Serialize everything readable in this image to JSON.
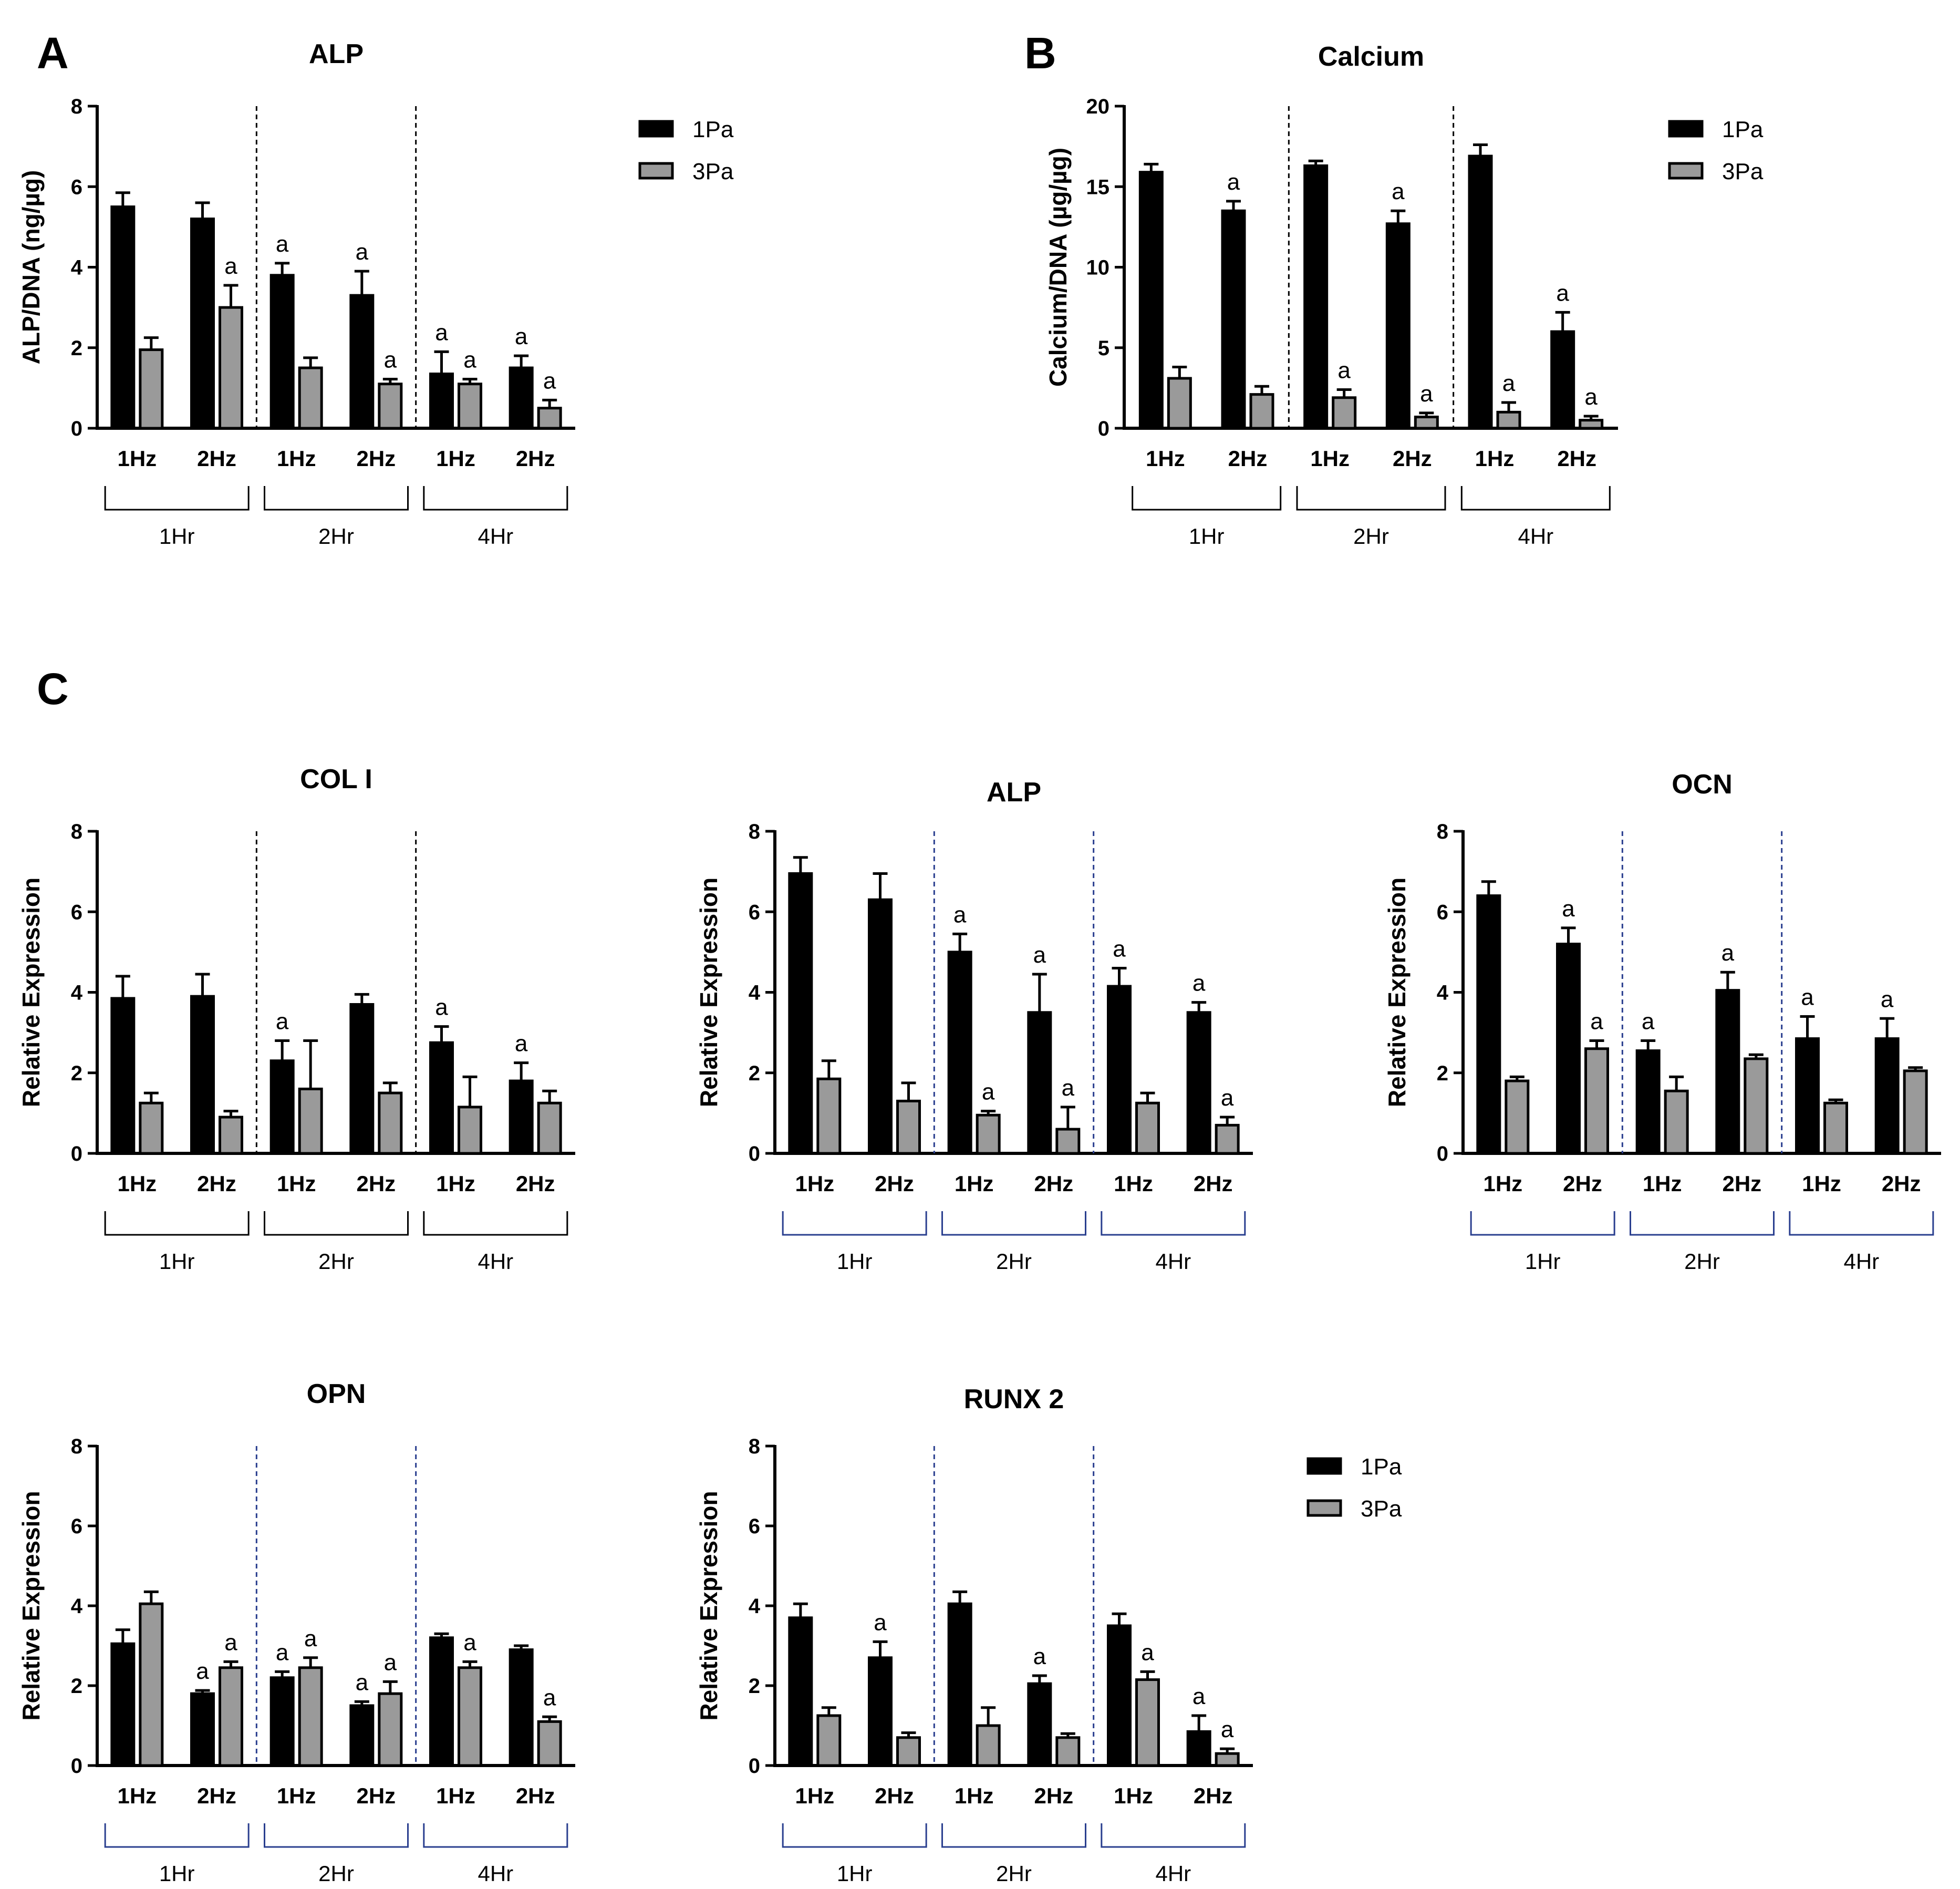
{
  "panel_letters": {
    "a": "A",
    "b": "B",
    "c": "C"
  },
  "legend": {
    "items": [
      {
        "label": "1Pa",
        "color": "#000000"
      },
      {
        "label": "3Pa",
        "color": "#9a9a9a"
      }
    ]
  },
  "chart_data": [
    {
      "id": "alp-a",
      "type": "bar",
      "title": "ALP",
      "ylabel": "ALP/DNA (ng/µg)",
      "ylim": [
        0,
        8
      ],
      "yticks": [
        "0",
        "2",
        "4",
        "6",
        "8"
      ],
      "categories": [
        "1Hz",
        "2Hz",
        "1Hz",
        "2Hz",
        "1Hz",
        "2Hz"
      ],
      "groups": [
        "1Hr",
        "2Hr",
        "4Hr"
      ],
      "series": [
        {
          "name": "1Pa",
          "values": [
            5.5,
            5.2,
            3.8,
            3.3,
            1.35,
            1.5
          ],
          "errors": [
            0.35,
            0.4,
            0.3,
            0.6,
            0.55,
            0.3
          ],
          "sig": [
            "",
            "",
            "a",
            "a",
            "a",
            "a"
          ]
        },
        {
          "name": "3Pa",
          "values": [
            1.95,
            3.0,
            1.5,
            1.1,
            1.1,
            0.5
          ],
          "errors": [
            0.3,
            0.55,
            0.25,
            0.12,
            0.12,
            0.2
          ],
          "sig": [
            "",
            "a",
            "",
            "a",
            "a",
            "a"
          ]
        }
      ],
      "divider_color": "#000000",
      "bracket_color": "#000000"
    },
    {
      "id": "calcium-b",
      "type": "bar",
      "title": "Calcium",
      "ylabel": "Calcium/DNA (µg/µg)",
      "ylim": [
        0,
        20
      ],
      "yticks": [
        "0",
        "5",
        "10",
        "15",
        "20"
      ],
      "categories": [
        "1Hz",
        "2Hz",
        "1Hz",
        "2Hz",
        "1Hz",
        "2Hz"
      ],
      "groups": [
        "1Hr",
        "2Hr",
        "4Hr"
      ],
      "series": [
        {
          "name": "1Pa",
          "values": [
            15.9,
            13.5,
            16.3,
            12.7,
            16.9,
            6.0
          ],
          "errors": [
            0.5,
            0.6,
            0.3,
            0.8,
            0.7,
            1.2
          ],
          "sig": [
            "",
            "a",
            "",
            "a",
            "",
            "a"
          ]
        },
        {
          "name": "3Pa",
          "values": [
            3.1,
            2.1,
            1.9,
            0.7,
            1.0,
            0.5
          ],
          "errors": [
            0.7,
            0.5,
            0.5,
            0.25,
            0.6,
            0.25
          ],
          "sig": [
            "",
            "",
            "a",
            "a",
            "a",
            "a"
          ]
        }
      ],
      "divider_color": "#000000",
      "bracket_color": "#000000"
    },
    {
      "id": "col1",
      "type": "bar",
      "title": "COL I",
      "ylabel": "Relative Expression",
      "ylim": [
        0,
        8
      ],
      "yticks": [
        "0",
        "2",
        "4",
        "6",
        "8"
      ],
      "categories": [
        "1Hz",
        "2Hz",
        "1Hz",
        "2Hz",
        "1Hz",
        "2Hz"
      ],
      "groups": [
        "1Hr",
        "2Hr",
        "4Hr"
      ],
      "series": [
        {
          "name": "1Pa",
          "values": [
            3.85,
            3.9,
            2.3,
            3.7,
            2.75,
            1.8
          ],
          "errors": [
            0.55,
            0.55,
            0.5,
            0.25,
            0.4,
            0.45
          ],
          "sig": [
            "",
            "",
            "a",
            "",
            "a",
            "a"
          ]
        },
        {
          "name": "3Pa",
          "values": [
            1.25,
            0.9,
            1.6,
            1.5,
            1.15,
            1.25
          ],
          "errors": [
            0.25,
            0.15,
            1.2,
            0.25,
            0.75,
            0.3
          ],
          "sig": [
            "",
            "",
            "",
            "",
            "",
            ""
          ]
        }
      ],
      "divider_color": "#000000",
      "bracket_color": "#000000"
    },
    {
      "id": "alp-c",
      "type": "bar",
      "title": "ALP",
      "ylabel": "Relative Expression",
      "ylim": [
        0,
        8
      ],
      "yticks": [
        "0",
        "2",
        "4",
        "6",
        "8"
      ],
      "categories": [
        "1Hz",
        "2Hz",
        "1Hz",
        "2Hz",
        "1Hz",
        "2Hz"
      ],
      "groups": [
        "1Hr",
        "2Hr",
        "4Hr"
      ],
      "series": [
        {
          "name": "1Pa",
          "values": [
            6.95,
            6.3,
            5.0,
            3.5,
            4.15,
            3.5
          ],
          "errors": [
            0.4,
            0.65,
            0.45,
            0.95,
            0.45,
            0.25
          ],
          "sig": [
            "",
            "",
            "a",
            "a",
            "a",
            "a"
          ]
        },
        {
          "name": "3Pa",
          "values": [
            1.85,
            1.3,
            0.95,
            0.6,
            1.25,
            0.7
          ],
          "errors": [
            0.45,
            0.45,
            0.1,
            0.55,
            0.25,
            0.2
          ],
          "sig": [
            "",
            "",
            "a",
            "a",
            "",
            "a"
          ]
        }
      ],
      "divider_color": "#2a3f8f",
      "bracket_color": "#2a3f8f"
    },
    {
      "id": "ocn",
      "type": "bar",
      "title": "OCN",
      "ylabel": "Relative Expression",
      "ylim": [
        0,
        8
      ],
      "yticks": [
        "0",
        "2",
        "4",
        "6",
        "8"
      ],
      "categories": [
        "1Hz",
        "2Hz",
        "1Hz",
        "2Hz",
        "1Hz",
        "2Hz"
      ],
      "groups": [
        "1Hr",
        "2Hr",
        "4Hr"
      ],
      "series": [
        {
          "name": "1Pa",
          "values": [
            6.4,
            5.2,
            2.55,
            4.05,
            2.85,
            2.85
          ],
          "errors": [
            0.35,
            0.4,
            0.25,
            0.45,
            0.55,
            0.5
          ],
          "sig": [
            "",
            "a",
            "a",
            "a",
            "a",
            "a"
          ]
        },
        {
          "name": "3Pa",
          "values": [
            1.8,
            2.6,
            1.55,
            2.35,
            1.25,
            2.05
          ],
          "errors": [
            0.1,
            0.2,
            0.35,
            0.1,
            0.08,
            0.08
          ],
          "sig": [
            "",
            "a",
            "",
            "",
            "",
            ""
          ]
        }
      ],
      "divider_color": "#2a3f8f",
      "bracket_color": "#2a3f8f"
    },
    {
      "id": "opn",
      "type": "bar",
      "title": "OPN",
      "ylabel": "Relative Expression",
      "ylim": [
        0,
        8
      ],
      "yticks": [
        "0",
        "2",
        "4",
        "6",
        "8"
      ],
      "categories": [
        "1Hz",
        "2Hz",
        "1Hz",
        "2Hz",
        "1Hz",
        "2Hz"
      ],
      "groups": [
        "1Hr",
        "2Hr",
        "4Hr"
      ],
      "series": [
        {
          "name": "1Pa",
          "values": [
            3.05,
            1.8,
            2.2,
            1.5,
            3.2,
            2.9
          ],
          "errors": [
            0.35,
            0.08,
            0.15,
            0.1,
            0.1,
            0.1
          ],
          "sig": [
            "",
            "a",
            "a",
            "a",
            "",
            ""
          ]
        },
        {
          "name": "3Pa",
          "values": [
            4.05,
            2.45,
            2.45,
            1.8,
            2.45,
            1.1
          ],
          "errors": [
            0.3,
            0.15,
            0.25,
            0.3,
            0.15,
            0.12
          ],
          "sig": [
            "",
            "a",
            "a",
            "a",
            "a",
            "a"
          ]
        }
      ],
      "divider_color": "#2a3f8f",
      "bracket_color": "#2a3f8f"
    },
    {
      "id": "runx2",
      "type": "bar",
      "title": "RUNX 2",
      "ylabel": "Relative Expression",
      "ylim": [
        0,
        8
      ],
      "yticks": [
        "0",
        "2",
        "4",
        "6",
        "8"
      ],
      "categories": [
        "1Hz",
        "2Hz",
        "1Hz",
        "2Hz",
        "1Hz",
        "2Hz"
      ],
      "groups": [
        "1Hr",
        "2Hr",
        "4Hr"
      ],
      "series": [
        {
          "name": "1Pa",
          "values": [
            3.7,
            2.7,
            4.05,
            2.05,
            3.5,
            0.85
          ],
          "errors": [
            0.35,
            0.4,
            0.3,
            0.2,
            0.3,
            0.4
          ],
          "sig": [
            "",
            "a",
            "",
            "a",
            "",
            "a"
          ]
        },
        {
          "name": "3Pa",
          "values": [
            1.25,
            0.7,
            1.0,
            0.7,
            2.15,
            0.3
          ],
          "errors": [
            0.2,
            0.12,
            0.45,
            0.1,
            0.2,
            0.12
          ],
          "sig": [
            "",
            "",
            "",
            "",
            "a",
            "a"
          ]
        }
      ],
      "divider_color": "#2a3f8f",
      "bracket_color": "#2a3f8f"
    }
  ]
}
